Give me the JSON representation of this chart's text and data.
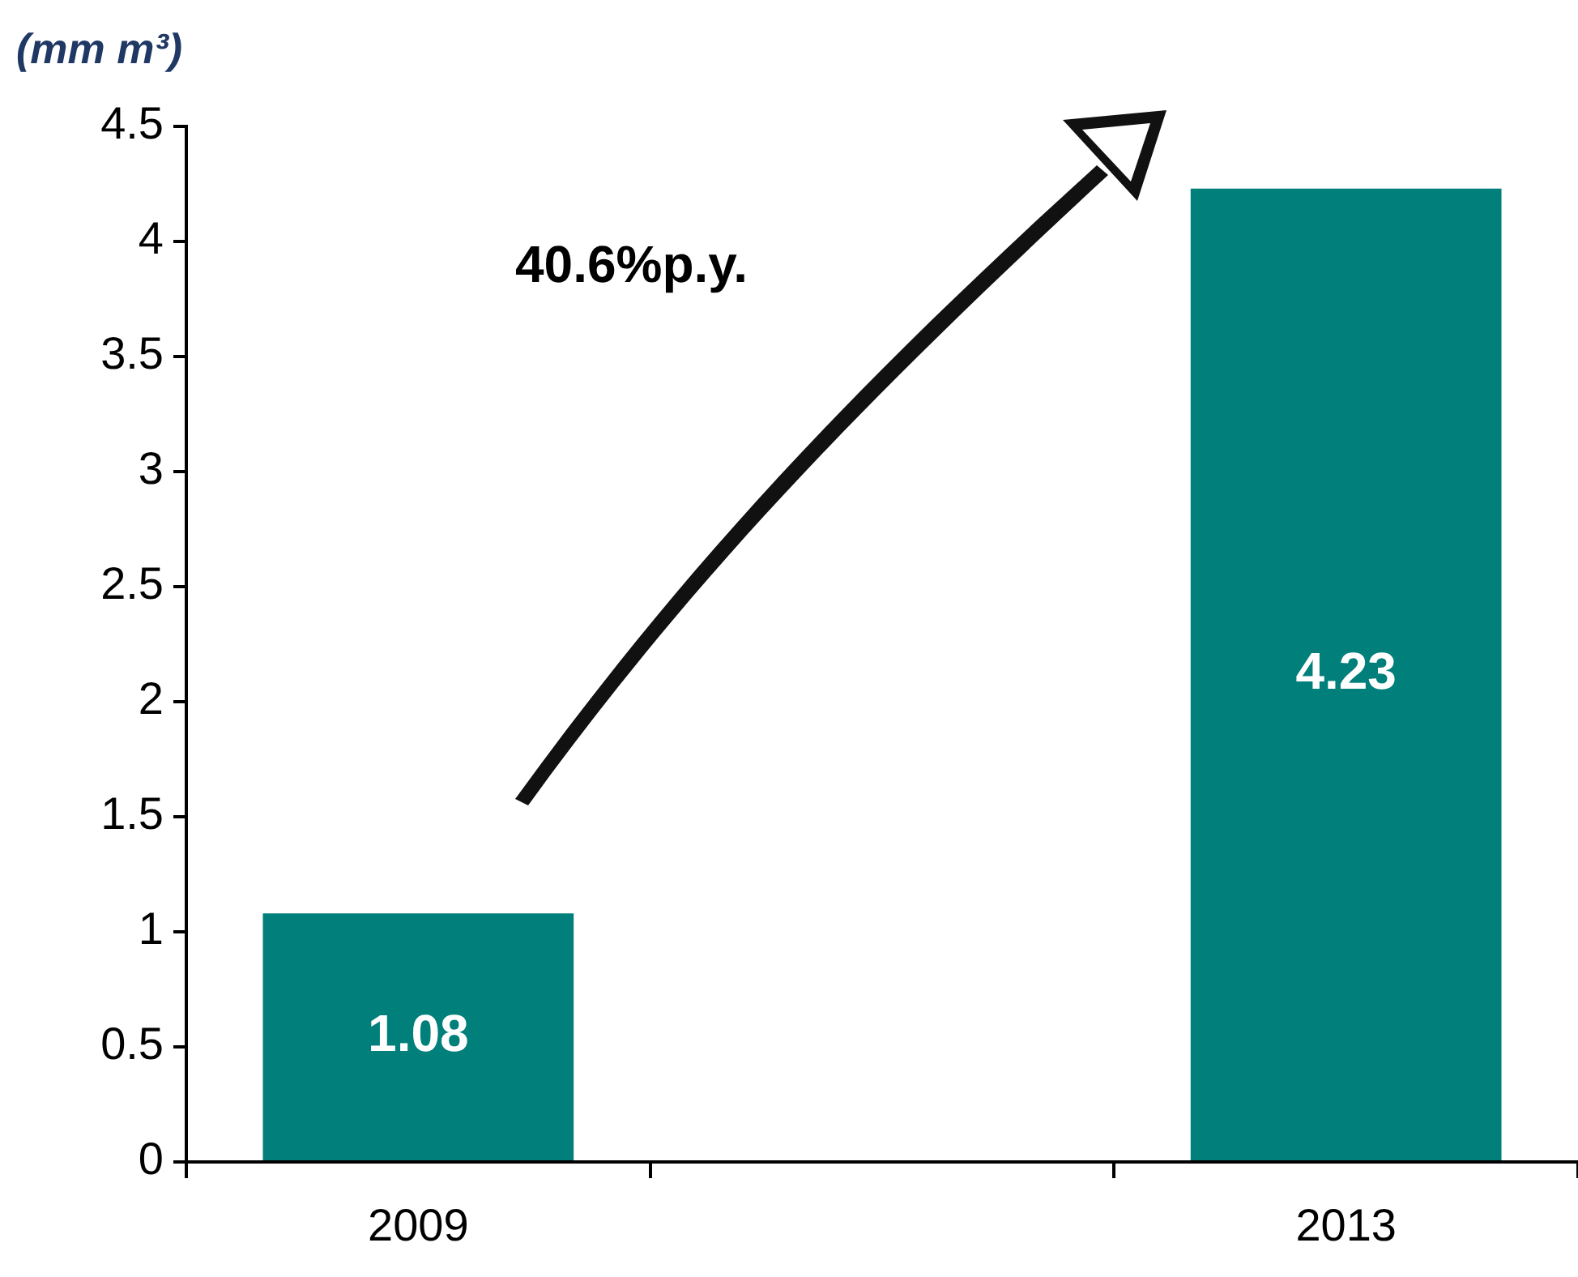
{
  "chart_data": {
    "type": "bar",
    "ylabel": "(mm m³)",
    "categories": [
      "2009",
      null,
      "2013"
    ],
    "values": [
      1.08,
      null,
      4.23
    ],
    "color": "#007f7b",
    "ylim": [
      0,
      4.5
    ],
    "yticks": [
      0,
      {
        "value": 0.5,
        "label": "0.5"
      },
      1,
      {
        "value": 1.5,
        "label": "1.5"
      },
      2,
      {
        "value": 2.5,
        "label": "2.5"
      },
      3,
      {
        "value": 3.5,
        "label": "3.5"
      },
      4,
      {
        "value": 4.5,
        "label": "4.5"
      }
    ],
    "grid": false,
    "legend": false,
    "data_labels": true,
    "annotations": [
      "40.6%p.y."
    ]
  }
}
